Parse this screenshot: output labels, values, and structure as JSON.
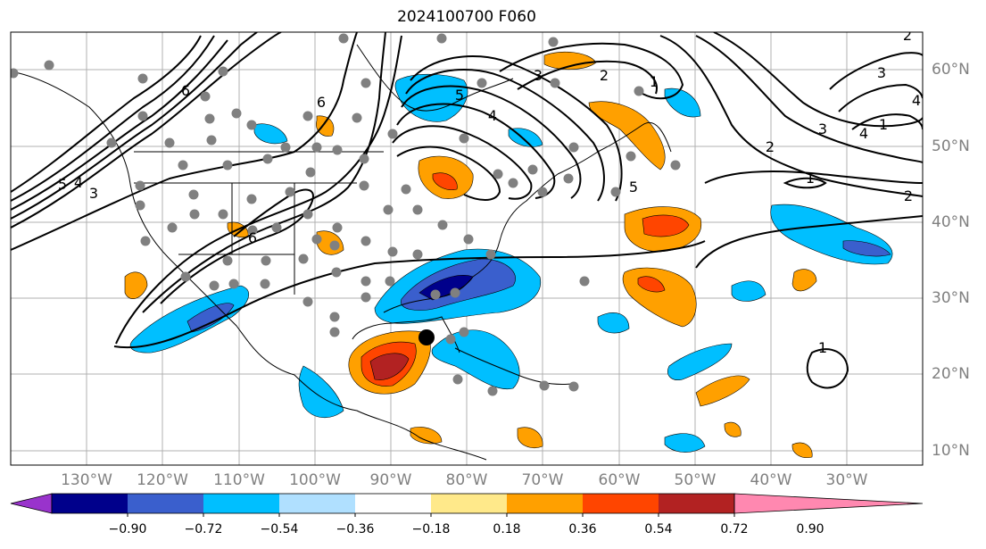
{
  "title": "2024100700 F060",
  "longitude_labels": [
    "130°W",
    "120°W",
    "110°W",
    "100°W",
    "90°W",
    "80°W",
    "70°W",
    "60°W",
    "50°W",
    "40°W",
    "30°W"
  ],
  "latitude_labels": [
    "60°N",
    "50°N",
    "40°N",
    "30°N",
    "20°N",
    "10°N"
  ],
  "colorbar": {
    "tick_labels": [
      "−0.90",
      "−0.72",
      "−0.54",
      "−0.36",
      "−0.18",
      "0.18",
      "0.36",
      "0.54",
      "0.72",
      "0.90"
    ],
    "colors": [
      "#9933cc",
      "#00008b",
      "#3a5fcd",
      "#00bfff",
      "#b0e0ff",
      "#ffffff",
      "#ffe98a",
      "#ffa000",
      "#ff4500",
      "#b22222",
      "#ff88b0"
    ]
  },
  "anomaly_colors": {
    "neg_light": "#00bfff",
    "neg_medium": "#3a5fcd",
    "neg_dark": "#00008b",
    "pos_light": "#ffa000",
    "pos_medium": "#ff4500",
    "pos_dark": "#b22222"
  },
  "contour_labels": [
    "6",
    "5",
    "4",
    "3",
    "2",
    "1",
    "5",
    "6",
    "6",
    "5",
    "4",
    "3",
    "2",
    "1",
    "2",
    "3",
    "4",
    "1",
    "3",
    "4",
    "2",
    "1"
  ],
  "storm_marker_color": "#000000",
  "station_marker_color": "#808080"
}
